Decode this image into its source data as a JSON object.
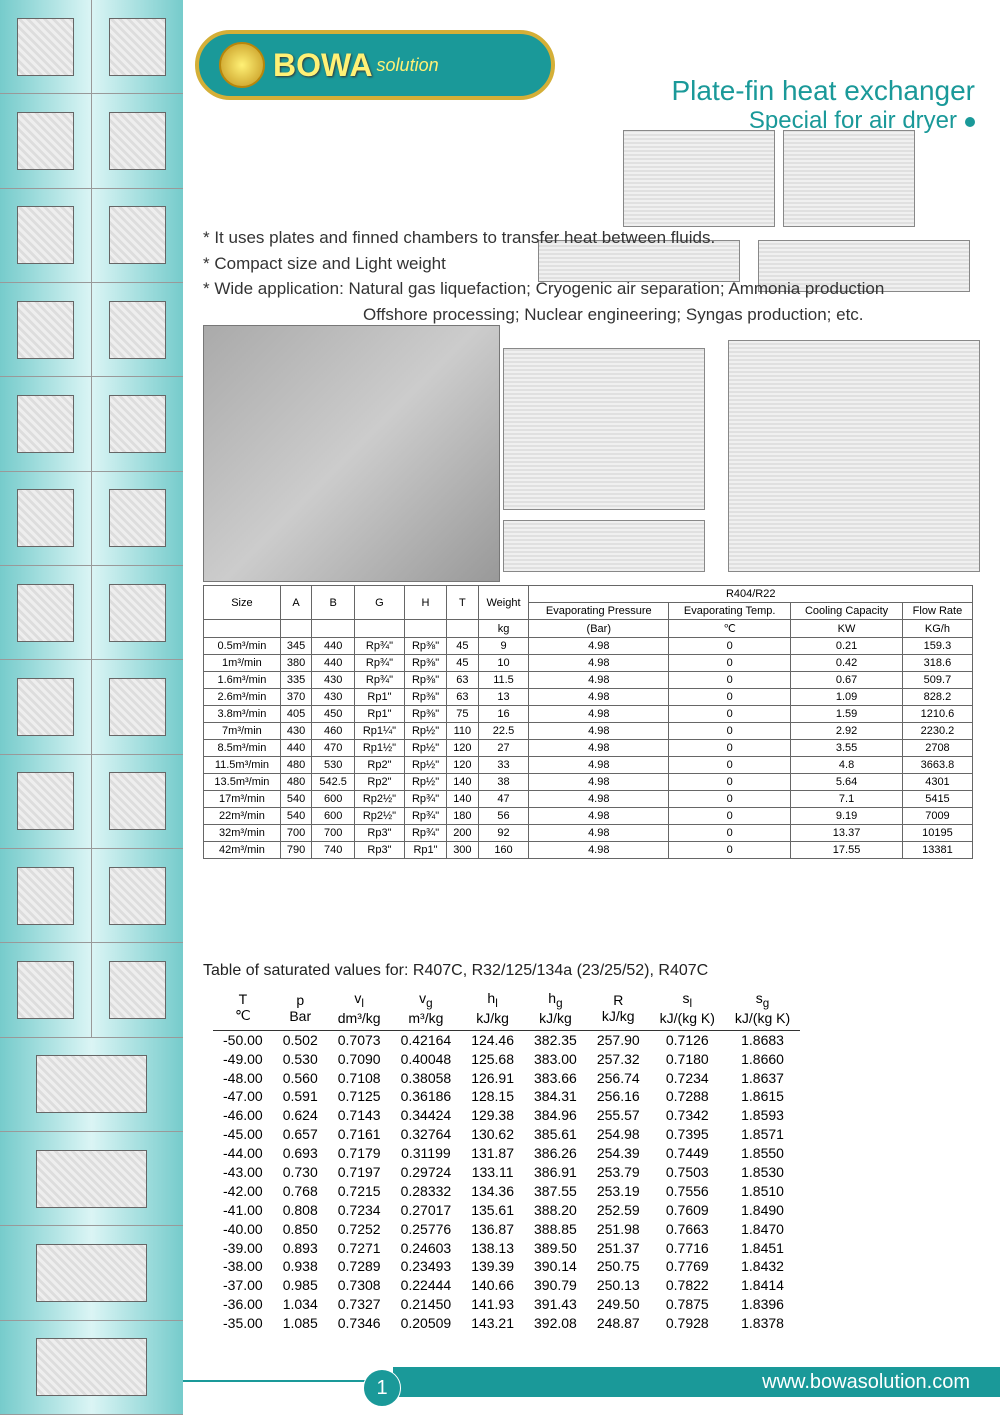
{
  "logo": {
    "brand": "BOWA",
    "suffix": "solution"
  },
  "heading": {
    "main": "Plate-fin heat exchanger",
    "sub": "Special for air dryer"
  },
  "description": {
    "l1": "* It uses plates and finned chambers to transfer heat between fluids.",
    "l2": "* Compact size and Light weight",
    "l3": "* Wide application: Natural gas liquefaction; Cryogenic air separation; Ammonia production",
    "l4": "Offshore processing; Nuclear engineering; Syngas production; etc."
  },
  "spec_table": {
    "group_header": "R404/R22",
    "headers": {
      "size": "Size",
      "a": "A",
      "b": "B",
      "g": "G",
      "h": "H",
      "t": "T",
      "weight": "Weight",
      "evap_press": "Evaporating Pressure",
      "evap_temp": "Evaporating Temp.",
      "cooling": "Cooling Capacity",
      "flow": "Flow Rate"
    },
    "units": {
      "weight": "kg",
      "evap_press": "(Bar)",
      "evap_temp": "℃",
      "cooling": "KW",
      "flow": "KG/h"
    },
    "rows": [
      [
        "0.5m³/min",
        "345",
        "440",
        "Rp¾\"",
        "Rp⅜\"",
        "45",
        "9",
        "4.98",
        "0",
        "0.21",
        "159.3"
      ],
      [
        "1m³/min",
        "380",
        "440",
        "Rp¾\"",
        "Rp⅜\"",
        "45",
        "10",
        "4.98",
        "0",
        "0.42",
        "318.6"
      ],
      [
        "1.6m³/min",
        "335",
        "430",
        "Rp¾\"",
        "Rp⅜\"",
        "63",
        "11.5",
        "4.98",
        "0",
        "0.67",
        "509.7"
      ],
      [
        "2.6m³/min",
        "370",
        "430",
        "Rp1\"",
        "Rp⅜\"",
        "63",
        "13",
        "4.98",
        "0",
        "1.09",
        "828.2"
      ],
      [
        "3.8m³/min",
        "405",
        "450",
        "Rp1\"",
        "Rp⅜\"",
        "75",
        "16",
        "4.98",
        "0",
        "1.59",
        "1210.6"
      ],
      [
        "7m³/min",
        "430",
        "460",
        "Rp1¼\"",
        "Rp½\"",
        "110",
        "22.5",
        "4.98",
        "0",
        "2.92",
        "2230.2"
      ],
      [
        "8.5m³/min",
        "440",
        "470",
        "Rp1½\"",
        "Rp½\"",
        "120",
        "27",
        "4.98",
        "0",
        "3.55",
        "2708"
      ],
      [
        "11.5m³/min",
        "480",
        "530",
        "Rp2\"",
        "Rp½\"",
        "120",
        "33",
        "4.98",
        "0",
        "4.8",
        "3663.8"
      ],
      [
        "13.5m³/min",
        "480",
        "542.5",
        "Rp2\"",
        "Rp½\"",
        "140",
        "38",
        "4.98",
        "0",
        "5.64",
        "4301"
      ],
      [
        "17m³/min",
        "540",
        "600",
        "Rp2½\"",
        "Rp¾\"",
        "140",
        "47",
        "4.98",
        "0",
        "7.1",
        "5415"
      ],
      [
        "22m³/min",
        "540",
        "600",
        "Rp2½\"",
        "Rp¾\"",
        "180",
        "56",
        "4.98",
        "0",
        "9.19",
        "7009"
      ],
      [
        "32m³/min",
        "700",
        "700",
        "Rp3\"",
        "Rp¾\"",
        "200",
        "92",
        "4.98",
        "0",
        "13.37",
        "10195"
      ],
      [
        "42m³/min",
        "790",
        "740",
        "Rp3\"",
        "Rp1\"",
        "300",
        "160",
        "4.98",
        "0",
        "17.55",
        "13381"
      ]
    ]
  },
  "sat_caption": "Table of saturated values for: R407C, R32/125/134a (23/25/52), R407C",
  "sat_table": {
    "headers": [
      {
        "t": "T",
        "u": "℃"
      },
      {
        "t": "p",
        "u": "Bar"
      },
      {
        "t": "v<sub>l</sub>",
        "u": "dm³/kg"
      },
      {
        "t": "v<sub>g</sub>",
        "u": "m³/kg"
      },
      {
        "t": "h<sub>l</sub>",
        "u": "kJ/kg"
      },
      {
        "t": "h<sub>g</sub>",
        "u": "kJ/kg"
      },
      {
        "t": "R",
        "u": "kJ/kg"
      },
      {
        "t": "s<sub>l</sub>",
        "u": "kJ/(kg K)"
      },
      {
        "t": "s<sub>g</sub>",
        "u": "kJ/(kg K)"
      }
    ],
    "rows": [
      [
        "-50.00",
        "0.502",
        "0.7073",
        "0.42164",
        "124.46",
        "382.35",
        "257.90",
        "0.7126",
        "1.8683"
      ],
      [
        "-49.00",
        "0.530",
        "0.7090",
        "0.40048",
        "125.68",
        "383.00",
        "257.32",
        "0.7180",
        "1.8660"
      ],
      [
        "-48.00",
        "0.560",
        "0.7108",
        "0.38058",
        "126.91",
        "383.66",
        "256.74",
        "0.7234",
        "1.8637"
      ],
      [
        "-47.00",
        "0.591",
        "0.7125",
        "0.36186",
        "128.15",
        "384.31",
        "256.16",
        "0.7288",
        "1.8615"
      ],
      [
        "-46.00",
        "0.624",
        "0.7143",
        "0.34424",
        "129.38",
        "384.96",
        "255.57",
        "0.7342",
        "1.8593"
      ],
      [
        "-45.00",
        "0.657",
        "0.7161",
        "0.32764",
        "130.62",
        "385.61",
        "254.98",
        "0.7395",
        "1.8571"
      ],
      [
        "-44.00",
        "0.693",
        "0.7179",
        "0.31199",
        "131.87",
        "386.26",
        "254.39",
        "0.7449",
        "1.8550"
      ],
      [
        "-43.00",
        "0.730",
        "0.7197",
        "0.29724",
        "133.11",
        "386.91",
        "253.79",
        "0.7503",
        "1.8530"
      ],
      [
        "-42.00",
        "0.768",
        "0.7215",
        "0.28332",
        "134.36",
        "387.55",
        "253.19",
        "0.7556",
        "1.8510"
      ],
      [
        "-41.00",
        "0.808",
        "0.7234",
        "0.27017",
        "135.61",
        "388.20",
        "252.59",
        "0.7609",
        "1.8490"
      ],
      [
        "-40.00",
        "0.850",
        "0.7252",
        "0.25776",
        "136.87",
        "388.85",
        "251.98",
        "0.7663",
        "1.8470"
      ],
      [
        "-39.00",
        "0.893",
        "0.7271",
        "0.24603",
        "138.13",
        "389.50",
        "251.37",
        "0.7716",
        "1.8451"
      ],
      [
        "-38.00",
        "0.938",
        "0.7289",
        "0.23493",
        "139.39",
        "390.14",
        "250.75",
        "0.7769",
        "1.8432"
      ],
      [
        "-37.00",
        "0.985",
        "0.7308",
        "0.22444",
        "140.66",
        "390.79",
        "250.13",
        "0.7822",
        "1.8414"
      ],
      [
        "-36.00",
        "1.034",
        "0.7327",
        "0.21450",
        "141.93",
        "391.43",
        "249.50",
        "0.7875",
        "1.8396"
      ],
      [
        "-35.00",
        "1.085",
        "0.7346",
        "0.20509",
        "143.21",
        "392.08",
        "248.87",
        "0.7928",
        "1.8378"
      ]
    ]
  },
  "footer": {
    "page": "1",
    "url": "www.bowasolution.com"
  },
  "colors": {
    "teal": "#1a9999",
    "gold": "#d4af37"
  }
}
